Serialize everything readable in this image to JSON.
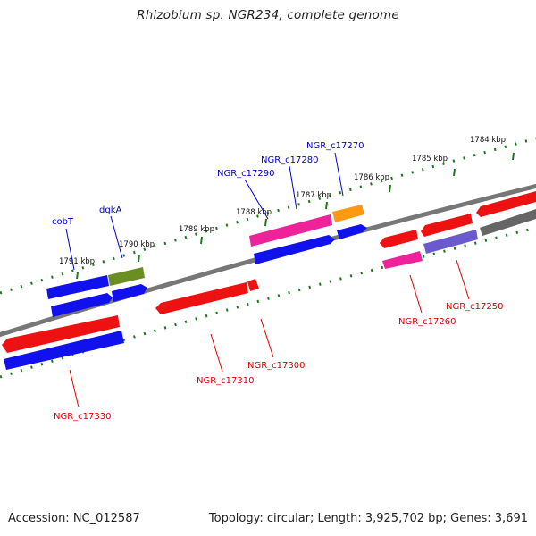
{
  "title": "Rhizobium sp. NGR234, complete genome",
  "footer": {
    "accession": "Accession: NC_012587",
    "summary": "Topology: circular; Length: 3,925,702 bp; Genes: 3,691"
  },
  "colors": {
    "forward_label": "#0000cc",
    "reverse_label": "#dd0000",
    "backbone": "#777777",
    "tick": "#1a7a1a",
    "red": "#ee1111",
    "blue": "#1111ee",
    "magenta": "#ee2299",
    "orange": "#ff9911",
    "olive": "#6b8e23",
    "slate": "#6a5acd",
    "gray": "#666666"
  },
  "scale_labels": [
    "1791 kbp",
    "1790 kbp",
    "1789 kbp",
    "1788 kbp",
    "1787 kbp",
    "1786 kbp",
    "1785 kbp",
    "1784 kbp"
  ],
  "gene_labels": {
    "forward": [
      "cobT",
      "dgkA",
      "NGR_c17290",
      "NGR_c17280",
      "NGR_c17270"
    ],
    "reverse": [
      "NGR_c17330",
      "NGR_c17310",
      "NGR_c17300",
      "NGR_c17260",
      "NGR_c17250"
    ]
  }
}
